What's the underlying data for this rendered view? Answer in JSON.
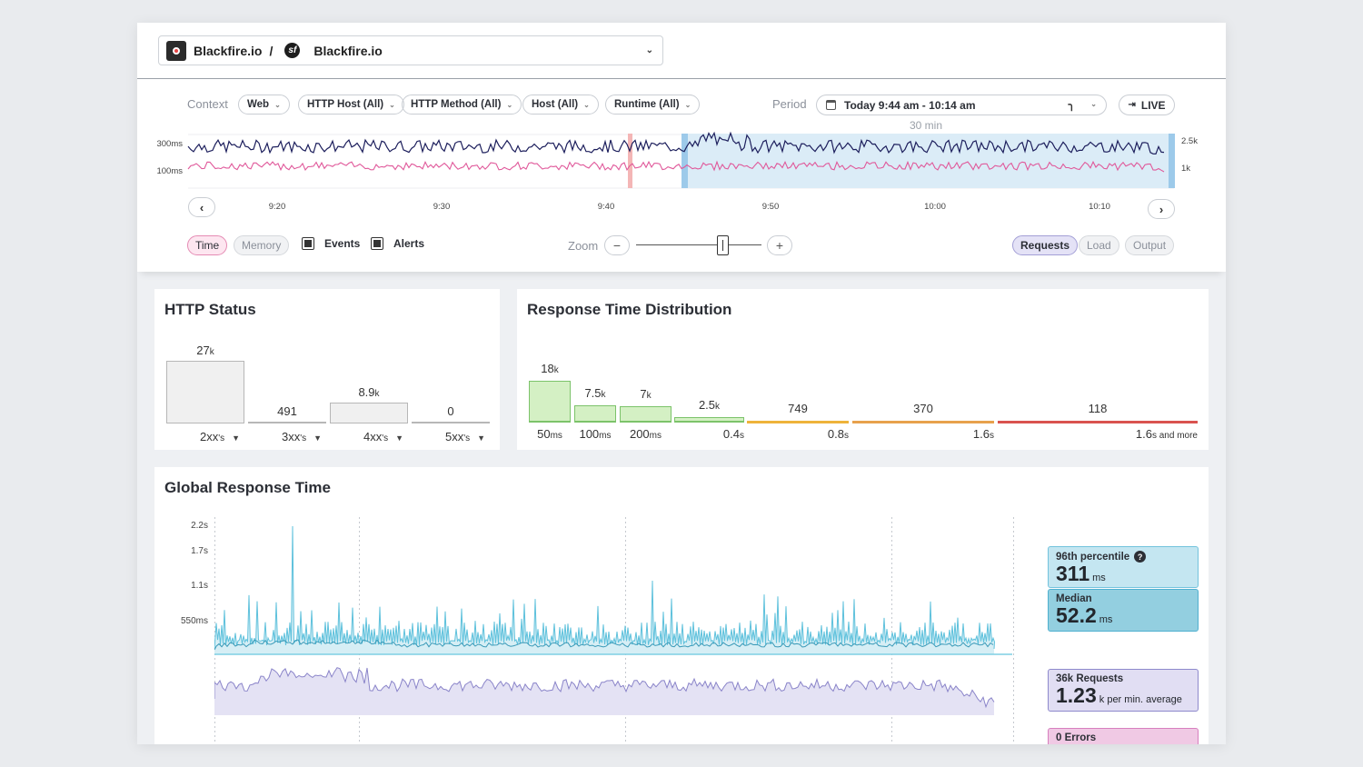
{
  "topbar": {
    "org_name": "Blackfire.io",
    "separator": "/",
    "env_name": "Blackfire.io"
  },
  "filters": {
    "context_label": "Context",
    "selects": [
      {
        "label": "Web"
      },
      {
        "label": "HTTP Host (All)"
      },
      {
        "label": "HTTP Method (All)"
      },
      {
        "label": "Host (All)"
      },
      {
        "label": "Runtime (All)"
      }
    ],
    "period_label": "Period",
    "period_value": "Today 9:44 am - 10:14 am",
    "live_label": "LIVE",
    "range_note": "30 min",
    "y_left": [
      "300ms",
      "100ms"
    ],
    "y_right": [
      "2.5k",
      "1k"
    ],
    "time_ticks": [
      "9:20",
      "9:30",
      "9:40",
      "9:50",
      "10:00",
      "10:10"
    ],
    "time_toggle": "Time",
    "memory_toggle": "Memory",
    "events_label": "Events",
    "alerts_label": "Alerts",
    "zoom_label": "Zoom",
    "metric_tabs": [
      "Requests",
      "Load",
      "Output"
    ],
    "colors": {
      "time_series": "#1c1e5c",
      "memory_series": "#e0589a",
      "selection": "#dbecf7",
      "marker": "#f4b6b6"
    }
  },
  "http_status": {
    "title": "HTTP Status",
    "bars": [
      {
        "value_num": "27",
        "value_unit": "k",
        "label": "2xx",
        "suffix": "'s",
        "count": 27000
      },
      {
        "value_num": "491",
        "value_unit": "",
        "label": "3xx",
        "suffix": "'s",
        "count": 491
      },
      {
        "value_num": "8.9",
        "value_unit": "k",
        "label": "4xx",
        "suffix": "'s",
        "count": 8900
      },
      {
        "value_num": "0",
        "value_unit": "",
        "label": "5xx",
        "suffix": "'s",
        "count": 0
      }
    ]
  },
  "response_dist": {
    "title": "Response Time Distribution",
    "bars": [
      {
        "value_num": "18",
        "value_unit": "k",
        "count": 18000,
        "label_num": "50",
        "label_unit": "ms",
        "color": "#d4f0c4",
        "border": "#7cc36a"
      },
      {
        "value_num": "7.5",
        "value_unit": "k",
        "count": 7500,
        "label_num": "100",
        "label_unit": "ms",
        "color": "#d4f0c4",
        "border": "#7cc36a"
      },
      {
        "value_num": "7",
        "value_unit": "k",
        "count": 7000,
        "label_num": "200",
        "label_unit": "ms",
        "color": "#d4f0c4",
        "border": "#7cc36a"
      },
      {
        "value_num": "2.5",
        "value_unit": "k",
        "count": 2500,
        "label_num": "0.4",
        "label_unit": "s",
        "color": "#d4f0c4",
        "border": "#7cc36a"
      },
      {
        "value_num": "749",
        "value_unit": "",
        "count": 749,
        "label_num": "0.8",
        "label_unit": "s",
        "color": "#fdf0c4",
        "border": "#eeb33a"
      },
      {
        "value_num": "370",
        "value_unit": "",
        "count": 370,
        "label_num": "1.6",
        "label_unit": "s",
        "color": "#fdf0c4",
        "border": "#e7a14c"
      },
      {
        "value_num": "118",
        "value_unit": "",
        "count": 118,
        "label_num": "1.6",
        "label_unit": "s and more",
        "color": "#fde0e0",
        "border": "#d9534f"
      }
    ]
  },
  "global_rt": {
    "title": "Global Response Time",
    "y_labels": [
      "2.2s",
      "1.7s",
      "1.1s",
      "550ms"
    ],
    "p96": {
      "label": "96th percentile",
      "value": "311",
      "unit": "ms"
    },
    "median": {
      "label": "Median",
      "value": "52.2",
      "unit": "ms"
    },
    "requests": {
      "label": "36k Requests",
      "value": "1.23",
      "unit": "k per min. average"
    },
    "errors": {
      "label": "0 Errors"
    }
  }
}
